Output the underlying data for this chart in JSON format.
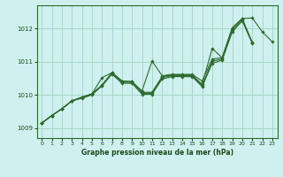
{
  "title": "Graphe pression niveau de la mer (hPa)",
  "bg_color": "#cef0ee",
  "grid_color": "#a8d8c8",
  "line_color": "#2d6a2d",
  "marker_color": "#2d6a2d",
  "xlim": [
    -0.5,
    23.5
  ],
  "ylim": [
    1008.7,
    1012.7
  ],
  "yticks": [
    1009,
    1010,
    1011,
    1012
  ],
  "xticks": [
    0,
    1,
    2,
    3,
    4,
    5,
    6,
    7,
    8,
    9,
    10,
    11,
    12,
    13,
    14,
    15,
    16,
    17,
    18,
    19,
    20,
    21,
    22,
    23
  ],
  "series": [
    {
      "x": [
        0,
        1,
        2,
        3,
        4,
        5,
        6,
        7,
        8,
        9,
        10,
        11,
        12,
        13,
        14,
        15,
        16,
        17,
        18,
        19,
        20,
        21,
        22,
        23
      ],
      "y": [
        1009.15,
        1009.38,
        1009.58,
        1009.82,
        1009.93,
        1010.03,
        1010.52,
        1010.67,
        1010.42,
        1010.4,
        1010.12,
        1011.02,
        1010.58,
        1010.62,
        1010.62,
        1010.62,
        1010.42,
        1011.08,
        1011.12,
        1012.02,
        1012.3,
        1012.32,
        1011.9,
        1011.6
      ]
    },
    {
      "x": [
        0,
        1,
        2,
        3,
        4,
        5,
        6,
        7,
        8,
        9,
        10,
        11,
        12,
        13,
        14,
        15,
        16,
        17,
        18,
        19,
        20,
        21
      ],
      "y": [
        1009.15,
        1009.38,
        1009.58,
        1009.82,
        1009.93,
        1010.03,
        1010.3,
        1010.67,
        1010.42,
        1010.4,
        1010.08,
        1010.08,
        1010.55,
        1010.6,
        1010.6,
        1010.6,
        1010.32,
        1011.4,
        1011.12,
        1012.02,
        1012.3,
        1011.58
      ]
    },
    {
      "x": [
        0,
        1,
        2,
        3,
        4,
        5,
        6,
        7,
        8,
        9,
        10,
        11,
        12,
        13,
        14,
        15,
        16,
        17,
        18,
        19,
        20,
        21
      ],
      "y": [
        1009.15,
        1009.38,
        1009.58,
        1009.82,
        1009.93,
        1010.03,
        1010.28,
        1010.65,
        1010.38,
        1010.38,
        1010.05,
        1010.05,
        1010.52,
        1010.58,
        1010.58,
        1010.58,
        1010.28,
        1011.02,
        1011.08,
        1011.95,
        1012.27,
        1011.58
      ]
    },
    {
      "x": [
        0,
        1,
        2,
        3,
        4,
        5,
        6,
        7,
        8,
        9,
        10,
        11,
        12,
        13,
        14,
        15,
        16,
        17,
        18,
        19,
        20,
        21
      ],
      "y": [
        1009.15,
        1009.38,
        1009.58,
        1009.82,
        1009.9,
        1010.0,
        1010.27,
        1010.63,
        1010.35,
        1010.35,
        1010.02,
        1010.02,
        1010.48,
        1010.55,
        1010.55,
        1010.55,
        1010.25,
        1010.95,
        1011.05,
        1011.9,
        1012.23,
        1011.55
      ]
    }
  ]
}
